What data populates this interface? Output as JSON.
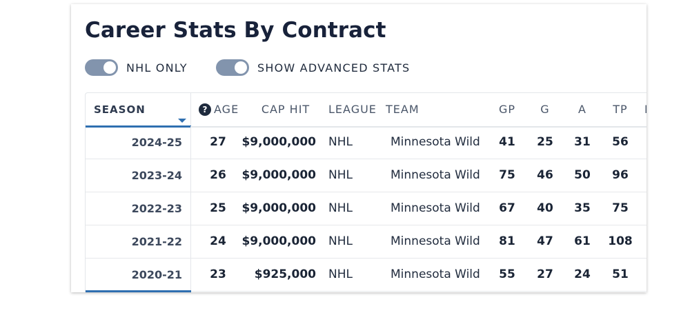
{
  "title": "Career Stats By Contract",
  "toggles": [
    {
      "label": "NHL ONLY",
      "on": true
    },
    {
      "label": "SHOW ADVANCED STATS",
      "on": true
    }
  ],
  "colors": {
    "accent": "#2f6fb0",
    "toggle_track": "#8294ad",
    "text_dark": "#1a2435"
  },
  "table": {
    "headers": {
      "season": "SEASON",
      "age": "AGE",
      "cap_hit": "CAP HIT",
      "league": "LEAGUE",
      "team": "TEAM",
      "gp": "GP",
      "g": "G",
      "a": "A",
      "tp": "TP",
      "next_cut": "I"
    },
    "sort": {
      "column": "season",
      "direction": "descending"
    },
    "rows": [
      {
        "season": "2024-25",
        "age": "27",
        "cap_hit": "$9,000,000",
        "league": "NHL",
        "team": "Minnesota Wild",
        "gp": "41",
        "g": "25",
        "a": "31",
        "tp": "56"
      },
      {
        "season": "2023-24",
        "age": "26",
        "cap_hit": "$9,000,000",
        "league": "NHL",
        "team": "Minnesota Wild",
        "gp": "75",
        "g": "46",
        "a": "50",
        "tp": "96"
      },
      {
        "season": "2022-23",
        "age": "25",
        "cap_hit": "$9,000,000",
        "league": "NHL",
        "team": "Minnesota Wild",
        "gp": "67",
        "g": "40",
        "a": "35",
        "tp": "75"
      },
      {
        "season": "2021-22",
        "age": "24",
        "cap_hit": "$9,000,000",
        "league": "NHL",
        "team": "Minnesota Wild",
        "gp": "81",
        "g": "47",
        "a": "61",
        "tp": "108"
      },
      {
        "season": "2020-21",
        "age": "23",
        "cap_hit": "$925,000",
        "league": "NHL",
        "team": "Minnesota Wild",
        "gp": "55",
        "g": "27",
        "a": "24",
        "tp": "51"
      }
    ]
  }
}
